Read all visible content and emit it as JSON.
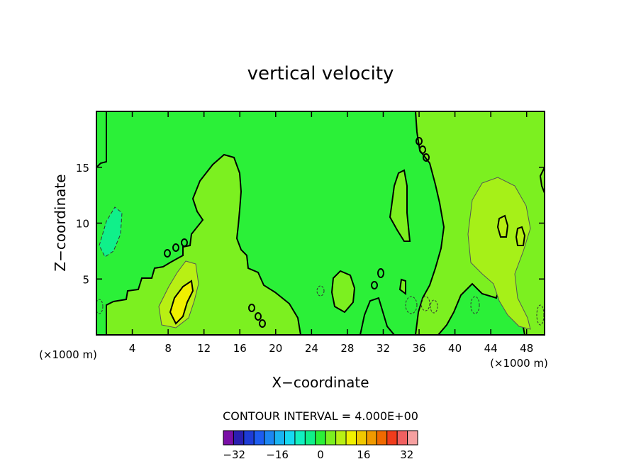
{
  "chart_data": {
    "type": "heatmap",
    "title": "vertical velocity",
    "xlabel": "X−coordinate",
    "ylabel": "Z−coordinate",
    "x_unit_left": "(×1000 m)",
    "x_unit_right": "(×1000 m)",
    "xlim": [
      0,
      50
    ],
    "ylim": [
      0,
      20
    ],
    "x_ticks": [
      4,
      8,
      12,
      16,
      20,
      24,
      28,
      32,
      36,
      40,
      44,
      48
    ],
    "x_tick_labels": [
      "4",
      "8",
      "12",
      "16",
      "20",
      "24",
      "28",
      "32",
      "36",
      "40",
      "44",
      "48"
    ],
    "y_ticks": [
      5,
      10,
      15
    ],
    "y_tick_labels": [
      "5",
      "10",
      "15"
    ],
    "contour_interval_text": "CONTOUR INTERVAL = 4.000E+00",
    "colorbar": {
      "levels": [
        -36,
        -32,
        -28,
        -24,
        -20,
        -16,
        -12,
        -8,
        -4,
        0,
        4,
        8,
        12,
        16,
        20,
        24,
        28,
        32,
        36
      ],
      "tick_values": [
        -32,
        -16,
        0,
        16,
        32
      ],
      "tick_labels": [
        "−32",
        "−16",
        "0",
        "16",
        "32"
      ],
      "colors": [
        "#7a0fa6",
        "#2a1fb0",
        "#1e3cd6",
        "#1d5cf0",
        "#1c86f2",
        "#1ab4f2",
        "#17d9f2",
        "#12f0c0",
        "#10f08a",
        "#2bf038",
        "#7cf020",
        "#b8f014",
        "#f0f000",
        "#f0c800",
        "#f09a00",
        "#f06a00",
        "#f03c1c",
        "#f06060",
        "#f6a0a0"
      ]
    },
    "background_level_color": "#2bf038",
    "features": [
      {
        "name": "upper-left ascending plume",
        "value_range": [
          0,
          4
        ],
        "color": "#7cf020",
        "x_range": [
          1,
          22
        ],
        "z_range": [
          0,
          16
        ]
      },
      {
        "name": "updraft core near x=9",
        "value_range": [
          4,
          12
        ],
        "color": "#b8f014",
        "x_center": 9.5,
        "z_center": 3
      },
      {
        "name": "thin column near x=34",
        "value_range": [
          0,
          4
        ],
        "color": "#7cf020",
        "x_range": [
          32.5,
          35
        ],
        "z_range": [
          8.5,
          14.6
        ]
      },
      {
        "name": "right plume",
        "value_range": [
          0,
          8
        ],
        "color": "#7cf020",
        "x_range": [
          36,
          50
        ],
        "z_range": [
          0,
          19
        ]
      },
      {
        "name": "downdraft patch near x=1",
        "value_range": [
          -4,
          0
        ],
        "color": "#10f08a",
        "x_center": 1.5,
        "z_center": 9
      }
    ]
  }
}
